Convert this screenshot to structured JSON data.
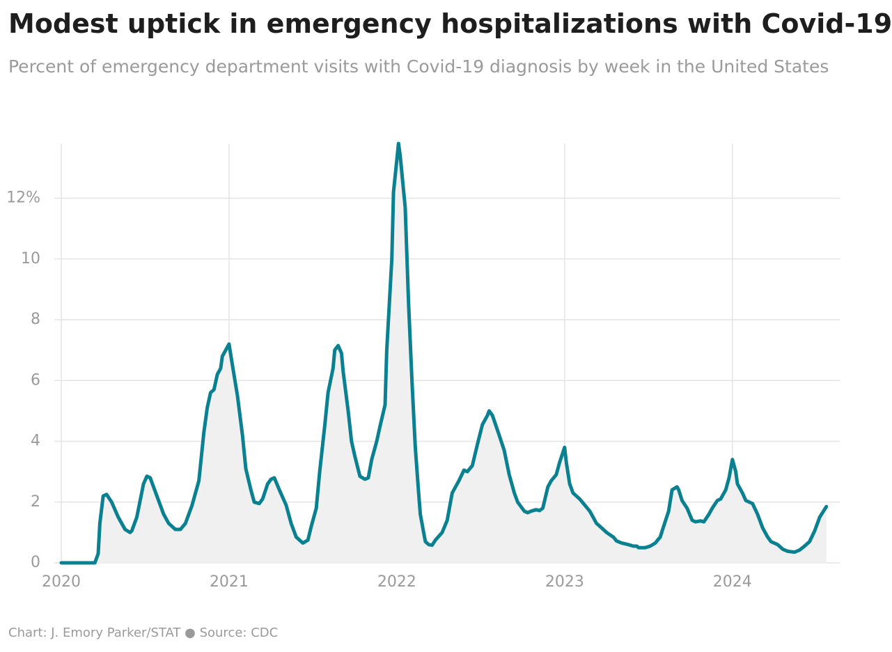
{
  "chart_data": {
    "type": "line",
    "title": "Modest uptick in emergency hospitalizations with Covid-19",
    "subtitle": "Percent of emergency department visits with Covid-19 diagnosis by week in the United States",
    "footer": "Chart: J. Emory Parker/STAT ● Source: CDC",
    "color": "#0a8091",
    "area_color": "#f0f0f0",
    "grid": true,
    "xlim": [
      2020,
      2024.64
    ],
    "xticks": [
      2020,
      2021,
      2022,
      2023,
      2024
    ],
    "ylim": [
      0,
      13.8
    ],
    "yticks": [
      0,
      2,
      4,
      6,
      8,
      10,
      {
        "value": 12,
        "label": "12%"
      }
    ],
    "x": [
      2020.0,
      2020.2,
      2020.22,
      2020.23,
      2020.25,
      2020.27,
      2020.3,
      2020.34,
      2020.38,
      2020.41,
      2020.42,
      2020.45,
      2020.49,
      2020.51,
      2020.53,
      2020.57,
      2020.61,
      2020.64,
      2020.68,
      2020.71,
      2020.74,
      2020.78,
      2020.82,
      2020.85,
      2020.87,
      2020.89,
      2020.91,
      2020.93,
      2020.95,
      2020.96,
      2020.99,
      2021.0,
      2021.02,
      2021.05,
      2021.08,
      2021.1,
      2021.13,
      2021.15,
      2021.18,
      2021.2,
      2021.23,
      2021.25,
      2021.27,
      2021.3,
      2021.34,
      2021.37,
      2021.4,
      2021.43,
      2021.44,
      2021.47,
      2021.49,
      2021.52,
      2021.54,
      2021.57,
      2021.59,
      2021.62,
      2021.63,
      2021.65,
      2021.67,
      2021.68,
      2021.71,
      2021.73,
      2021.75,
      2021.78,
      2021.81,
      2021.83,
      2021.85,
      2021.88,
      2021.9,
      2021.93,
      2021.94,
      2021.97,
      2021.98,
      2022.01,
      2022.02,
      2022.05,
      2022.07,
      2022.09,
      2022.11,
      2022.13,
      2022.14,
      2022.16,
      2022.17,
      2022.19,
      2022.21,
      2022.23,
      2022.27,
      2022.3,
      2022.33,
      2022.37,
      2022.4,
      2022.42,
      2022.45,
      2022.48,
      2022.51,
      2022.54,
      2022.55,
      2022.57,
      2022.61,
      2022.64,
      2022.67,
      2022.7,
      2022.72,
      2022.76,
      2022.78,
      2022.8,
      2022.83,
      2022.85,
      2022.87,
      2022.9,
      2022.92,
      2022.95,
      2022.97,
      2023.0,
      2023.01,
      2023.03,
      2023.05,
      2023.09,
      2023.12,
      2023.15,
      2023.19,
      2023.22,
      2023.25,
      2023.29,
      2023.31,
      2023.34,
      2023.38,
      2023.41,
      2023.43,
      2023.44,
      2023.48,
      2023.51,
      2023.54,
      2023.57,
      2023.59,
      2023.62,
      2023.64,
      2023.67,
      2023.68,
      2023.7,
      2023.73,
      2023.76,
      2023.78,
      2023.81,
      2023.83,
      2023.86,
      2023.88,
      2023.91,
      2023.93,
      2023.96,
      2023.98,
      2024.0,
      2024.02,
      2024.03,
      2024.06,
      2024.08,
      2024.12,
      2024.15,
      2024.18,
      2024.21,
      2024.23,
      2024.27,
      2024.3,
      2024.33,
      2024.37,
      2024.4,
      2024.43,
      2024.46,
      2024.49,
      2024.52,
      2024.56
    ],
    "values": [
      0,
      0,
      0.3,
      1.3,
      2.2,
      2.25,
      2.0,
      1.5,
      1.1,
      1.0,
      1.05,
      1.5,
      2.6,
      2.85,
      2.8,
      2.2,
      1.6,
      1.3,
      1.1,
      1.1,
      1.3,
      1.9,
      2.7,
      4.3,
      5.1,
      5.6,
      5.7,
      6.2,
      6.4,
      6.8,
      7.1,
      7.2,
      6.5,
      5.5,
      4.2,
      3.1,
      2.4,
      2.0,
      1.95,
      2.1,
      2.6,
      2.75,
      2.8,
      2.4,
      1.9,
      1.3,
      0.85,
      0.7,
      0.65,
      0.75,
      1.2,
      1.8,
      3.0,
      4.5,
      5.6,
      6.4,
      7.0,
      7.15,
      6.9,
      6.3,
      5.0,
      4.0,
      3.5,
      2.85,
      2.75,
      2.8,
      3.4,
      4.0,
      4.5,
      5.2,
      7.0,
      10.0,
      12.2,
      13.8,
      13.4,
      11.7,
      8.5,
      6.0,
      3.8,
      2.3,
      1.6,
      1.0,
      0.7,
      0.6,
      0.58,
      0.75,
      1.0,
      1.4,
      2.3,
      2.7,
      3.05,
      3.0,
      3.2,
      3.9,
      4.55,
      4.85,
      5.0,
      4.85,
      4.2,
      3.7,
      2.9,
      2.3,
      2.0,
      1.7,
      1.65,
      1.7,
      1.75,
      1.72,
      1.8,
      2.5,
      2.7,
      2.9,
      3.3,
      3.8,
      3.3,
      2.6,
      2.3,
      2.1,
      1.9,
      1.7,
      1.3,
      1.15,
      1.0,
      0.85,
      0.72,
      0.65,
      0.6,
      0.55,
      0.55,
      0.5,
      0.5,
      0.55,
      0.65,
      0.85,
      1.2,
      1.7,
      2.4,
      2.5,
      2.4,
      2.05,
      1.8,
      1.4,
      1.35,
      1.38,
      1.35,
      1.6,
      1.8,
      2.05,
      2.1,
      2.4,
      2.8,
      3.4,
      3.0,
      2.6,
      2.3,
      2.05,
      1.95,
      1.6,
      1.15,
      0.85,
      0.7,
      0.6,
      0.45,
      0.38,
      0.35,
      0.42,
      0.55,
      0.7,
      1.05,
      1.5,
      1.85
    ]
  }
}
